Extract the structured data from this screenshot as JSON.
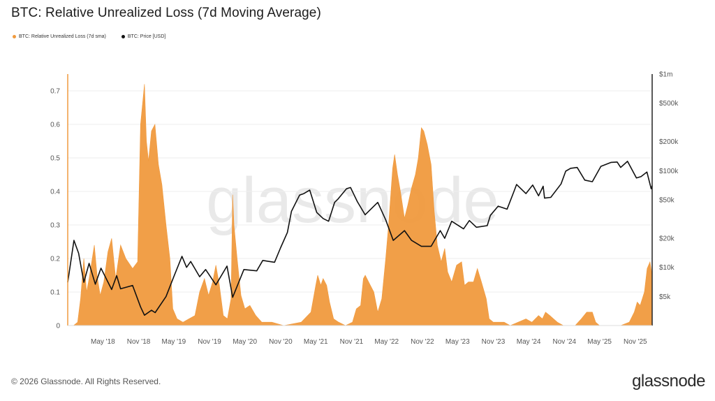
{
  "header": {
    "title": "BTC: Relative Unrealized Loss (7d Moving Average)"
  },
  "footer": {
    "copyright": "© 2026 Glassnode. All Rights Reserved.",
    "brand": "glassnode"
  },
  "watermark": "glassnode",
  "colors": {
    "loss": "#F09A3E",
    "price": "#111111",
    "grid": "#eeeeee"
  },
  "chart_data": {
    "type": "area",
    "title": "BTC: Relative Unrealized Loss (7d Moving Average)",
    "legend_position": "top-left",
    "grid": true,
    "x_range": [
      "2017-11-15",
      "2026-02-10"
    ],
    "x_ticks": [
      "May '18",
      "Nov '18",
      "May '19",
      "Nov '19",
      "May '20",
      "Nov '20",
      "May '21",
      "Nov '21",
      "May '22",
      "Nov '22",
      "May '23",
      "Nov '23",
      "May '24",
      "Nov '24",
      "May '25",
      "Nov '25"
    ],
    "y_left": {
      "range": [
        0,
        0.75
      ],
      "ticks": [
        "0",
        "0.1",
        "0.2",
        "0.3",
        "0.4",
        "0.5",
        "0.6",
        "0.7"
      ]
    },
    "y_right": {
      "scale": "log",
      "range": [
        2500,
        1000000
      ],
      "ticks": [
        "$5k",
        "$10k",
        "$20k",
        "$50k",
        "$100k",
        "$200k",
        "$500k",
        "$1m"
      ]
    },
    "series": [
      {
        "name": "BTC: Relative Unrealized Loss (7d sma)",
        "type": "area",
        "axis": "left",
        "points": [
          [
            "2017-11-15",
            0.0
          ],
          [
            "2017-12-15",
            0.0
          ],
          [
            "2018-01-05",
            0.01
          ],
          [
            "2018-01-20",
            0.08
          ],
          [
            "2018-02-06",
            0.2
          ],
          [
            "2018-02-20",
            0.1
          ],
          [
            "2018-03-05",
            0.14
          ],
          [
            "2018-04-01",
            0.24
          ],
          [
            "2018-04-15",
            0.15
          ],
          [
            "2018-05-01",
            0.09
          ],
          [
            "2018-05-20",
            0.13
          ],
          [
            "2018-06-10",
            0.22
          ],
          [
            "2018-06-29",
            0.26
          ],
          [
            "2018-07-20",
            0.14
          ],
          [
            "2018-08-14",
            0.24
          ],
          [
            "2018-09-10",
            0.2
          ],
          [
            "2018-10-15",
            0.17
          ],
          [
            "2018-11-10",
            0.19
          ],
          [
            "2018-11-25",
            0.6
          ],
          [
            "2018-12-15",
            0.72
          ],
          [
            "2018-12-25",
            0.55
          ],
          [
            "2019-01-05",
            0.49
          ],
          [
            "2019-01-20",
            0.58
          ],
          [
            "2019-02-07",
            0.6
          ],
          [
            "2019-02-25",
            0.48
          ],
          [
            "2019-03-15",
            0.42
          ],
          [
            "2019-04-05",
            0.3
          ],
          [
            "2019-04-25",
            0.2
          ],
          [
            "2019-05-10",
            0.05
          ],
          [
            "2019-06-01",
            0.02
          ],
          [
            "2019-07-01",
            0.01
          ],
          [
            "2019-08-01",
            0.02
          ],
          [
            "2019-09-01",
            0.03
          ],
          [
            "2019-09-25",
            0.1
          ],
          [
            "2019-10-20",
            0.14
          ],
          [
            "2019-11-10",
            0.09
          ],
          [
            "2019-12-01",
            0.13
          ],
          [
            "2019-12-18",
            0.18
          ],
          [
            "2020-01-05",
            0.12
          ],
          [
            "2020-01-25",
            0.03
          ],
          [
            "2020-02-15",
            0.02
          ],
          [
            "2020-03-05",
            0.08
          ],
          [
            "2020-03-13",
            0.39
          ],
          [
            "2020-03-20",
            0.3
          ],
          [
            "2020-04-05",
            0.2
          ],
          [
            "2020-04-25",
            0.09
          ],
          [
            "2020-05-15",
            0.05
          ],
          [
            "2020-06-10",
            0.06
          ],
          [
            "2020-07-10",
            0.03
          ],
          [
            "2020-08-10",
            0.01
          ],
          [
            "2020-10-01",
            0.01
          ],
          [
            "2020-12-01",
            0.0
          ],
          [
            "2021-03-01",
            0.01
          ],
          [
            "2021-04-20",
            0.04
          ],
          [
            "2021-05-15",
            0.12
          ],
          [
            "2021-05-25",
            0.15
          ],
          [
            "2021-06-10",
            0.12
          ],
          [
            "2021-06-22",
            0.14
          ],
          [
            "2021-07-10",
            0.12
          ],
          [
            "2021-07-25",
            0.07
          ],
          [
            "2021-08-15",
            0.02
          ],
          [
            "2021-09-10",
            0.01
          ],
          [
            "2021-10-15",
            0.0
          ],
          [
            "2021-11-20",
            0.01
          ],
          [
            "2021-12-10",
            0.05
          ],
          [
            "2022-01-01",
            0.06
          ],
          [
            "2022-01-15",
            0.14
          ],
          [
            "2022-01-25",
            0.15
          ],
          [
            "2022-02-20",
            0.12
          ],
          [
            "2022-03-10",
            0.1
          ],
          [
            "2022-03-30",
            0.04
          ],
          [
            "2022-04-20",
            0.08
          ],
          [
            "2022-05-10",
            0.2
          ],
          [
            "2022-05-25",
            0.3
          ],
          [
            "2022-06-15",
            0.47
          ],
          [
            "2022-06-25",
            0.51
          ],
          [
            "2022-07-10",
            0.45
          ],
          [
            "2022-07-25",
            0.4
          ],
          [
            "2022-08-15",
            0.32
          ],
          [
            "2022-09-01",
            0.36
          ],
          [
            "2022-09-20",
            0.41
          ],
          [
            "2022-10-10",
            0.45
          ],
          [
            "2022-10-25",
            0.5
          ],
          [
            "2022-11-10",
            0.59
          ],
          [
            "2022-11-22",
            0.58
          ],
          [
            "2022-12-10",
            0.54
          ],
          [
            "2022-12-30",
            0.48
          ],
          [
            "2023-01-15",
            0.34
          ],
          [
            "2023-01-31",
            0.24
          ],
          [
            "2023-02-20",
            0.19
          ],
          [
            "2023-03-10",
            0.23
          ],
          [
            "2023-03-25",
            0.16
          ],
          [
            "2023-04-15",
            0.13
          ],
          [
            "2023-05-10",
            0.18
          ],
          [
            "2023-06-05",
            0.19
          ],
          [
            "2023-06-20",
            0.12
          ],
          [
            "2023-07-10",
            0.13
          ],
          [
            "2023-08-05",
            0.13
          ],
          [
            "2023-08-25",
            0.17
          ],
          [
            "2023-09-15",
            0.13
          ],
          [
            "2023-10-10",
            0.08
          ],
          [
            "2023-10-25",
            0.02
          ],
          [
            "2023-11-15",
            0.01
          ],
          [
            "2024-01-10",
            0.01
          ],
          [
            "2024-02-10",
            0.0
          ],
          [
            "2024-05-01",
            0.02
          ],
          [
            "2024-06-01",
            0.01
          ],
          [
            "2024-07-05",
            0.03
          ],
          [
            "2024-07-25",
            0.02
          ],
          [
            "2024-08-10",
            0.04
          ],
          [
            "2024-09-01",
            0.03
          ],
          [
            "2024-09-20",
            0.02
          ],
          [
            "2024-10-10",
            0.01
          ],
          [
            "2024-11-10",
            0.0
          ],
          [
            "2025-01-10",
            0.0
          ],
          [
            "2025-02-10",
            0.02
          ],
          [
            "2025-03-10",
            0.04
          ],
          [
            "2025-04-08",
            0.04
          ],
          [
            "2025-04-25",
            0.01
          ],
          [
            "2025-05-15",
            0.0
          ],
          [
            "2025-09-01",
            0.0
          ],
          [
            "2025-10-15",
            0.01
          ],
          [
            "2025-11-10",
            0.04
          ],
          [
            "2025-11-25",
            0.07
          ],
          [
            "2025-12-10",
            0.06
          ],
          [
            "2026-01-01",
            0.1
          ],
          [
            "2026-01-15",
            0.17
          ],
          [
            "2026-01-30",
            0.19
          ],
          [
            "2026-02-10",
            0.15
          ]
        ]
      },
      {
        "name": "BTC: Price [USD]",
        "type": "line",
        "axis": "right",
        "points": [
          [
            "2017-11-15",
            7000
          ],
          [
            "2017-12-17",
            19000
          ],
          [
            "2018-01-10",
            14000
          ],
          [
            "2018-02-06",
            7000
          ],
          [
            "2018-03-05",
            11000
          ],
          [
            "2018-04-06",
            6700
          ],
          [
            "2018-05-05",
            9800
          ],
          [
            "2018-06-29",
            5900
          ],
          [
            "2018-07-25",
            8200
          ],
          [
            "2018-08-14",
            6000
          ],
          [
            "2018-10-15",
            6500
          ],
          [
            "2018-11-25",
            3900
          ],
          [
            "2018-12-15",
            3200
          ],
          [
            "2019-01-20",
            3600
          ],
          [
            "2019-02-08",
            3400
          ],
          [
            "2019-04-05",
            5000
          ],
          [
            "2019-05-15",
            8000
          ],
          [
            "2019-06-26",
            13000
          ],
          [
            "2019-07-20",
            10000
          ],
          [
            "2019-08-10",
            11500
          ],
          [
            "2019-09-25",
            8000
          ],
          [
            "2019-10-26",
            9500
          ],
          [
            "2019-12-18",
            6600
          ],
          [
            "2020-02-13",
            10300
          ],
          [
            "2020-03-13",
            4900
          ],
          [
            "2020-05-10",
            9500
          ],
          [
            "2020-07-15",
            9200
          ],
          [
            "2020-08-15",
            11800
          ],
          [
            "2020-10-15",
            11300
          ],
          [
            "2020-11-15",
            16000
          ],
          [
            "2020-12-20",
            23000
          ],
          [
            "2021-01-10",
            38000
          ],
          [
            "2021-02-21",
            56000
          ],
          [
            "2021-03-15",
            58000
          ],
          [
            "2021-04-14",
            63000
          ],
          [
            "2021-05-20",
            37000
          ],
          [
            "2021-06-22",
            32000
          ],
          [
            "2021-07-20",
            30000
          ],
          [
            "2021-08-20",
            47000
          ],
          [
            "2021-09-07",
            51000
          ],
          [
            "2021-10-20",
            65000
          ],
          [
            "2021-11-10",
            67000
          ],
          [
            "2021-12-15",
            48000
          ],
          [
            "2022-01-24",
            35000
          ],
          [
            "2022-03-30",
            47000
          ],
          [
            "2022-05-10",
            31000
          ],
          [
            "2022-06-18",
            19000
          ],
          [
            "2022-08-15",
            24000
          ],
          [
            "2022-09-20",
            19000
          ],
          [
            "2022-11-10",
            16500
          ],
          [
            "2022-12-30",
            16500
          ],
          [
            "2023-02-15",
            24000
          ],
          [
            "2023-03-10",
            20000
          ],
          [
            "2023-04-15",
            30000
          ],
          [
            "2023-06-15",
            25000
          ],
          [
            "2023-07-15",
            30500
          ],
          [
            "2023-08-20",
            26000
          ],
          [
            "2023-10-15",
            27000
          ],
          [
            "2023-10-31",
            34500
          ],
          [
            "2023-12-10",
            43000
          ],
          [
            "2024-01-25",
            40000
          ],
          [
            "2024-02-28",
            60000
          ],
          [
            "2024-03-14",
            72000
          ],
          [
            "2024-05-01",
            58000
          ],
          [
            "2024-06-05",
            71000
          ],
          [
            "2024-07-05",
            55000
          ],
          [
            "2024-07-29",
            69000
          ],
          [
            "2024-08-05",
            52000
          ],
          [
            "2024-09-06",
            53000
          ],
          [
            "2024-10-29",
            73000
          ],
          [
            "2024-11-22",
            99000
          ],
          [
            "2024-12-17",
            106000
          ],
          [
            "2025-01-20",
            108000
          ],
          [
            "2025-02-28",
            80000
          ],
          [
            "2025-04-08",
            77000
          ],
          [
            "2025-05-22",
            111000
          ],
          [
            "2025-07-14",
            122000
          ],
          [
            "2025-08-14",
            123000
          ],
          [
            "2025-09-01",
            108000
          ],
          [
            "2025-10-06",
            125000
          ],
          [
            "2025-11-21",
            84000
          ],
          [
            "2025-12-15",
            87000
          ],
          [
            "2026-01-14",
            97000
          ],
          [
            "2026-02-05",
            65000
          ],
          [
            "2026-02-10",
            70000
          ]
        ]
      }
    ]
  }
}
